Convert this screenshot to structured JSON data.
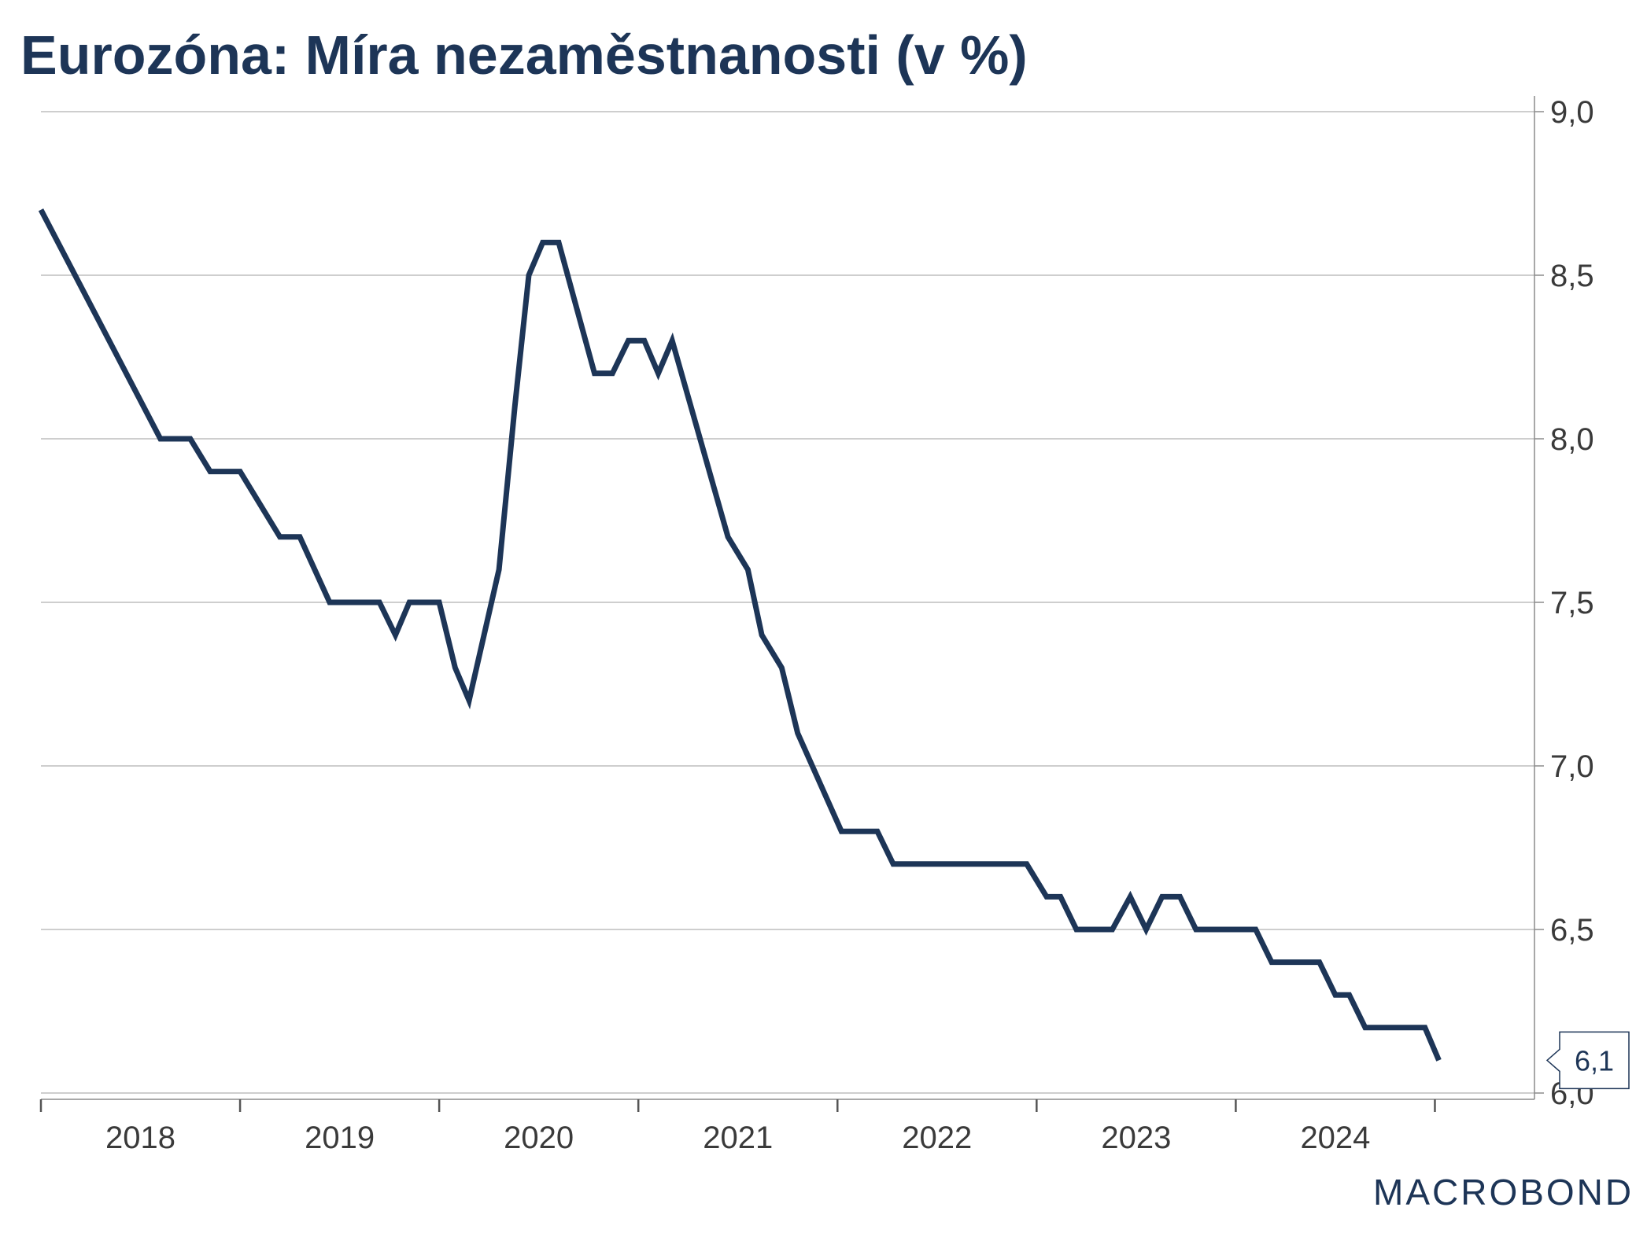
{
  "title": "Eurozóna: Míra nezaměstnanosti (v %)",
  "brand": {
    "logo_text": "MACROBOND"
  },
  "colors": {
    "line": "#1d3557",
    "grid": "#bdbdbd",
    "axis": "#8c8c8c",
    "text": "#3a3a3a"
  },
  "chart_data": {
    "type": "line",
    "title": "Eurozóna: Míra nezaměstnanosti (v %)",
    "xlabel": "",
    "ylabel": "",
    "ylim": [
      6.0,
      9.0
    ],
    "yticks": [
      6.0,
      6.5,
      7.0,
      7.5,
      8.0,
      8.5,
      9.0
    ],
    "ytick_labels": [
      "6,0",
      "6,5",
      "7,0",
      "7,5",
      "8,0",
      "8,5",
      "9,0"
    ],
    "xlim": [
      2018.0,
      2025.5
    ],
    "year_ticks": [
      2018,
      2019,
      2020,
      2021,
      2022,
      2023,
      2024,
      2025
    ],
    "year_labels": [
      "2018",
      "2019",
      "2020",
      "2021",
      "2022",
      "2023",
      "2024"
    ],
    "grid": true,
    "y_axis_side": "right",
    "last_value_label": "6,1",
    "series": [
      {
        "values": [
          [
            2018.0,
            8.7
          ],
          [
            2018.6,
            8.0
          ],
          [
            2018.75,
            8.0
          ],
          [
            2018.85,
            7.9
          ],
          [
            2019.0,
            7.9
          ],
          [
            2019.2,
            7.7
          ],
          [
            2019.3,
            7.7
          ],
          [
            2019.45,
            7.5
          ],
          [
            2019.7,
            7.5
          ],
          [
            2019.78,
            7.4
          ],
          [
            2019.85,
            7.5
          ],
          [
            2020.0,
            7.5
          ],
          [
            2020.08,
            7.3
          ],
          [
            2020.15,
            7.2
          ],
          [
            2020.3,
            7.6
          ],
          [
            2020.38,
            8.1
          ],
          [
            2020.45,
            8.5
          ],
          [
            2020.52,
            8.6
          ],
          [
            2020.6,
            8.6
          ],
          [
            2020.78,
            8.2
          ],
          [
            2020.87,
            8.2
          ],
          [
            2020.95,
            8.3
          ],
          [
            2021.03,
            8.3
          ],
          [
            2021.1,
            8.2
          ],
          [
            2021.17,
            8.3
          ],
          [
            2021.45,
            7.7
          ],
          [
            2021.55,
            7.6
          ],
          [
            2021.62,
            7.4
          ],
          [
            2021.72,
            7.3
          ],
          [
            2021.8,
            7.1
          ],
          [
            2022.02,
            6.8
          ],
          [
            2022.2,
            6.8
          ],
          [
            2022.28,
            6.7
          ],
          [
            2022.95,
            6.7
          ],
          [
            2023.05,
            6.6
          ],
          [
            2023.12,
            6.6
          ],
          [
            2023.2,
            6.5
          ],
          [
            2023.38,
            6.5
          ],
          [
            2023.47,
            6.6
          ],
          [
            2023.55,
            6.5
          ],
          [
            2023.63,
            6.6
          ],
          [
            2023.72,
            6.6
          ],
          [
            2023.8,
            6.5
          ],
          [
            2024.1,
            6.5
          ],
          [
            2024.18,
            6.4
          ],
          [
            2024.42,
            6.4
          ],
          [
            2024.5,
            6.3
          ],
          [
            2024.57,
            6.3
          ],
          [
            2024.65,
            6.2
          ],
          [
            2024.95,
            6.2
          ],
          [
            2025.02,
            6.1
          ]
        ]
      }
    ]
  }
}
